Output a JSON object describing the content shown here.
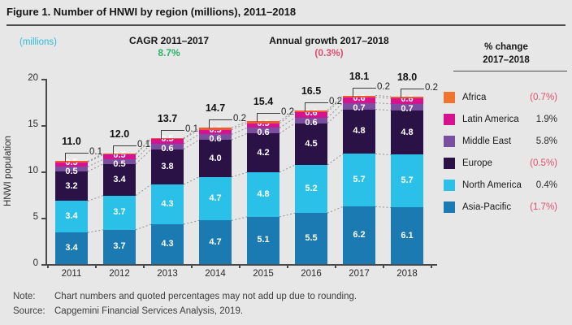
{
  "title": "Figure 1. Number of HNWI by region (millions), 2011–2018",
  "header": {
    "units_label": "(millions)",
    "cagr_label": "CAGR 2011–2017",
    "cagr_value": "8.7%",
    "growth_label": "Annual growth 2017–2018",
    "growth_value": "(0.3%)"
  },
  "colors": {
    "positive_green": "#2bb367",
    "negative_pink": "#e0506e",
    "cyan_accent": "#2fb9dd"
  },
  "chart_data": {
    "type": "bar",
    "stacked": true,
    "title": "Number of HNWI by region (millions), 2011–2018",
    "xlabel": "",
    "ylabel": "HNWI population",
    "ylim": [
      0,
      20
    ],
    "yticks": [
      0,
      5,
      10,
      15,
      20
    ],
    "grid": false,
    "categories": [
      "2011",
      "2012",
      "2013",
      "2014",
      "2015",
      "2016",
      "2017",
      "2018"
    ],
    "series": [
      {
        "name": "Asia-Pacific",
        "color": "#1a7ab1",
        "values": [
          3.4,
          3.7,
          4.3,
          4.7,
          5.1,
          5.5,
          6.2,
          6.1
        ]
      },
      {
        "name": "North America",
        "color": "#2ac0e8",
        "values": [
          3.4,
          3.7,
          4.3,
          4.7,
          4.8,
          5.2,
          5.7,
          5.7
        ]
      },
      {
        "name": "Europe",
        "color": "#2b1246",
        "values": [
          3.2,
          3.4,
          3.8,
          4.0,
          4.2,
          4.5,
          4.8,
          4.8
        ]
      },
      {
        "name": "Middle East",
        "color": "#7b4fa0",
        "values": [
          0.5,
          0.5,
          0.6,
          0.6,
          0.6,
          0.6,
          0.7,
          0.7
        ]
      },
      {
        "name": "Latin America",
        "color": "#d6138f",
        "values": [
          0.5,
          0.5,
          0.5,
          0.5,
          0.5,
          0.6,
          0.6,
          0.6
        ]
      },
      {
        "name": "Africa",
        "color": "#ee5a31",
        "values": [
          0.1,
          0.1,
          0.1,
          0.2,
          0.2,
          0.2,
          0.2,
          0.2
        ]
      }
    ],
    "totals": [
      "11.0",
      "12.0",
      "13.7",
      "14.7",
      "15.4",
      "16.5",
      "18.1",
      "18.0"
    ],
    "africa_callouts": [
      "0.1",
      "0.1",
      "0.1",
      "0.2",
      "0.2",
      "0.2",
      "0.2",
      "0.2"
    ]
  },
  "legend": {
    "header_line1": "% change",
    "header_line2": "2017–2018",
    "items": [
      {
        "label": "Africa",
        "color": "#f0742e",
        "pct_change": "(0.7%)",
        "negative": true
      },
      {
        "label": "Latin America",
        "color": "#d6138f",
        "pct_change": "1.9%",
        "negative": false
      },
      {
        "label": "Middle East",
        "color": "#7b4fa0",
        "pct_change": "5.8%",
        "negative": false
      },
      {
        "label": "Europe",
        "color": "#2b1246",
        "pct_change": "(0.5%)",
        "negative": true
      },
      {
        "label": "North America",
        "color": "#2ac0e8",
        "pct_change": "0.4%",
        "negative": false
      },
      {
        "label": "Asia-Pacific",
        "color": "#1a7ab1",
        "pct_change": "(1.7%)",
        "negative": true
      }
    ]
  },
  "footer": {
    "note_label": "Note:",
    "note_text": "Chart numbers and quoted percentages may not add up due to rounding.",
    "source_label": "Source:",
    "source_text": "Capgemini Financial Services Analysis, 2019."
  }
}
